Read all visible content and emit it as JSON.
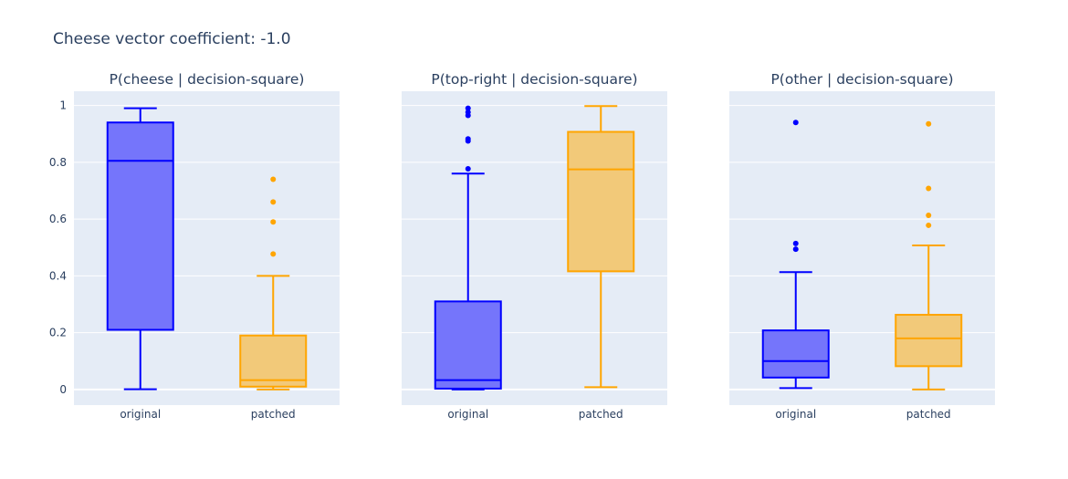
{
  "figure": {
    "title": "Cheese vector coefficient: -1.0"
  },
  "colors": {
    "plot_bg": "#e5ecf6",
    "grid": "#ffffff",
    "original": "#0000ff",
    "original_fill": "#7575fb",
    "patched": "#ffa500",
    "patched_fill": "#f2c979",
    "text": "#2a3f5f"
  },
  "chart_data": [
    {
      "type": "box",
      "title": "P(cheese | decision-square)",
      "categories": [
        "original",
        "patched"
      ],
      "ylim": [
        -0.055,
        1.05
      ],
      "yticks": [
        0,
        0.2,
        0.4,
        0.6,
        0.8,
        1
      ],
      "ytick_labels": [
        "0",
        "0.2",
        "0.4",
        "0.6",
        "0.8",
        "1"
      ],
      "grid": true,
      "series": [
        {
          "name": "original",
          "min": 0.001,
          "q1": 0.21,
          "median": 0.805,
          "q3": 0.94,
          "max": 0.99,
          "outliers": []
        },
        {
          "name": "patched",
          "min": 0.0,
          "q1": 0.01,
          "median": 0.033,
          "q3": 0.19,
          "max": 0.4,
          "outliers": [
            0.74,
            0.66,
            0.59,
            0.477
          ]
        }
      ]
    },
    {
      "type": "box",
      "title": "P(top-right | decision-square)",
      "categories": [
        "original",
        "patched"
      ],
      "ylim": [
        -0.055,
        1.05
      ],
      "yticks": [
        0,
        0.2,
        0.4,
        0.6,
        0.8,
        1
      ],
      "ytick_labels": [],
      "grid": true,
      "series": [
        {
          "name": "original",
          "min": 0.0,
          "q1": 0.003,
          "median": 0.033,
          "q3": 0.31,
          "max": 0.76,
          "outliers": [
            0.99,
            0.976,
            0.965,
            0.882,
            0.875,
            0.777
          ]
        },
        {
          "name": "patched",
          "min": 0.008,
          "q1": 0.416,
          "median": 0.775,
          "q3": 0.907,
          "max": 0.998,
          "outliers": []
        }
      ]
    },
    {
      "type": "box",
      "title": "P(other | decision-square)",
      "categories": [
        "original",
        "patched"
      ],
      "ylim": [
        -0.055,
        1.05
      ],
      "yticks": [
        0,
        0.2,
        0.4,
        0.6,
        0.8,
        1
      ],
      "ytick_labels": [],
      "grid": true,
      "series": [
        {
          "name": "original",
          "min": 0.005,
          "q1": 0.042,
          "median": 0.1,
          "q3": 0.208,
          "max": 0.413,
          "outliers": [
            0.94,
            0.514,
            0.494
          ]
        },
        {
          "name": "patched",
          "min": 0.0,
          "q1": 0.082,
          "median": 0.18,
          "q3": 0.263,
          "max": 0.507,
          "outliers": [
            0.935,
            0.708,
            0.613,
            0.578
          ]
        }
      ]
    }
  ]
}
